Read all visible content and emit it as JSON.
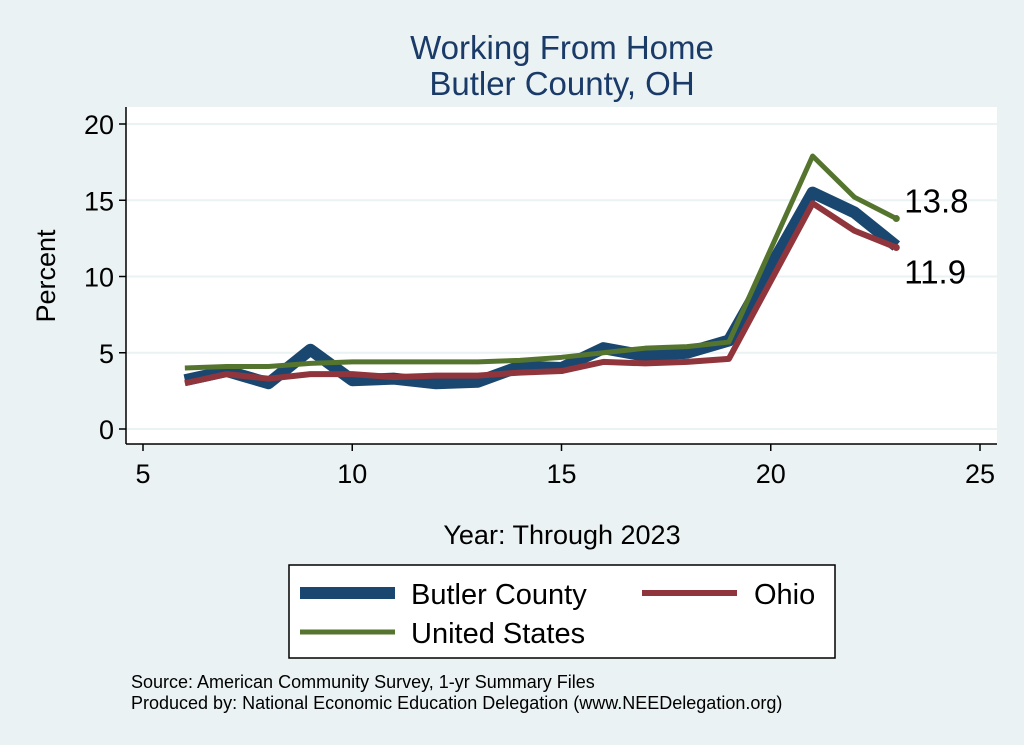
{
  "chart_data": {
    "type": "line",
    "title": [
      "Working From Home",
      "Butler County, OH"
    ],
    "xlabel": "Year: Through 2023",
    "ylabel": "Percent",
    "xlim": [
      5,
      25
    ],
    "ylim": [
      0,
      20
    ],
    "xticks": [
      5,
      10,
      15,
      20,
      25
    ],
    "yticks": [
      0,
      5,
      10,
      15,
      20
    ],
    "grid": true,
    "x": [
      6,
      7,
      8,
      9,
      10,
      11,
      12,
      13,
      14,
      15,
      16,
      17,
      18,
      19,
      21,
      22,
      23
    ],
    "series": [
      {
        "name": "Butler County",
        "color": "#1a476f",
        "values": [
          3.2,
          3.8,
          3.0,
          5.2,
          3.2,
          3.3,
          3.0,
          3.1,
          4.1,
          4.0,
          5.3,
          4.8,
          5.0,
          5.8,
          15.5,
          14.2,
          12.0
        ]
      },
      {
        "name": "Ohio",
        "color": "#90353b",
        "values": [
          3.0,
          3.6,
          3.3,
          3.6,
          3.6,
          3.4,
          3.5,
          3.5,
          3.7,
          3.8,
          4.4,
          4.3,
          4.4,
          4.6,
          14.8,
          13.0,
          11.9
        ]
      },
      {
        "name": "United States",
        "color": "#55752f",
        "values": [
          4.0,
          4.1,
          4.1,
          4.3,
          4.4,
          4.4,
          4.4,
          4.4,
          4.5,
          4.7,
          5.0,
          5.3,
          5.4,
          5.7,
          17.9,
          15.2,
          13.8
        ]
      }
    ],
    "annotations": [
      {
        "text": "13.8",
        "x": 23,
        "y": 13.8
      },
      {
        "text": "11.9",
        "x": 23,
        "y": 11.9
      }
    ],
    "legend": {
      "placement": "bottom"
    },
    "notes": [
      "Source: American Community Survey, 1-yr Summary Files",
      "Produced by: National Economic Education Delegation (www.NEEDelegation.org)"
    ]
  }
}
